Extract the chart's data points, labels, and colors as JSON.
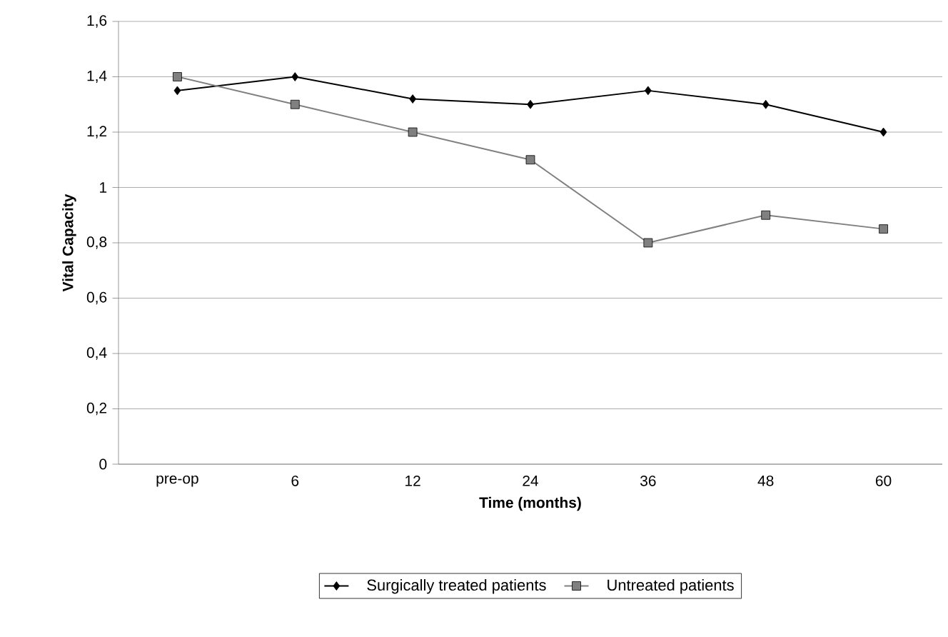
{
  "chart_data": {
    "type": "line",
    "xlabel": "Time (months)",
    "ylabel": "Vital Capacity",
    "categories": [
      "pre-op",
      "6",
      "12",
      "24",
      "36",
      "48",
      "60"
    ],
    "series": [
      {
        "name": "Surgically treated patients",
        "color": "#000000",
        "marker": "diamond",
        "values": [
          1.35,
          1.4,
          1.32,
          1.3,
          1.35,
          1.3,
          1.2
        ]
      },
      {
        "name": "Untreated patients",
        "color": "#808080",
        "marker": "square",
        "values": [
          1.4,
          1.3,
          1.2,
          1.1,
          0.8,
          0.9,
          0.85
        ]
      }
    ],
    "ylim": [
      0,
      1.6
    ],
    "yticks": [
      0,
      {
        "value": 0.2,
        "label": "0,2"
      },
      {
        "value": 0.4,
        "label": "0,4"
      },
      {
        "value": 0.6,
        "label": "0,6"
      },
      {
        "value": 0.8,
        "label": "0,8"
      },
      1,
      {
        "value": 1.2,
        "label": "1,2"
      },
      {
        "value": 1.4,
        "label": "1,4"
      },
      {
        "value": 1.6,
        "label": "1,6"
      }
    ],
    "grid": "y",
    "legend": "bottom",
    "line_style": "solid"
  }
}
